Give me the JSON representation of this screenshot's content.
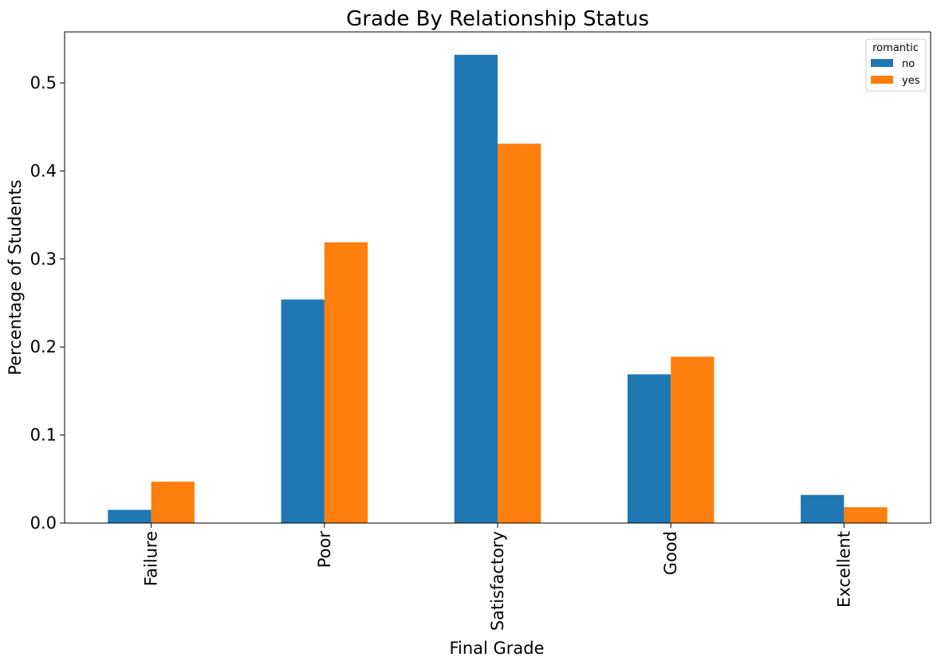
{
  "chart_data": {
    "type": "bar",
    "title": "Grade By Relationship Status",
    "xlabel": "Final Grade",
    "ylabel": "Percentage of Students",
    "categories": [
      "Failure",
      "Poor",
      "Satisfactory",
      "Good",
      "Excellent"
    ],
    "series": [
      {
        "name": "no",
        "color": "#1f77b4",
        "values": [
          0.015,
          0.254,
          0.532,
          0.169,
          0.032
        ]
      },
      {
        "name": "yes",
        "color": "#ff7f0e",
        "values": [
          0.047,
          0.319,
          0.431,
          0.189,
          0.018
        ]
      }
    ],
    "ylim": [
      0,
      0.558
    ],
    "yticks": [
      0.0,
      0.1,
      0.2,
      0.3,
      0.4,
      0.5
    ],
    "ytick_labels": [
      "0.0",
      "0.1",
      "0.2",
      "0.3",
      "0.4",
      "0.5"
    ],
    "x_tick_rotation": "vertical",
    "legend": {
      "title": "romantic",
      "position": "top-right"
    },
    "grid": false
  }
}
